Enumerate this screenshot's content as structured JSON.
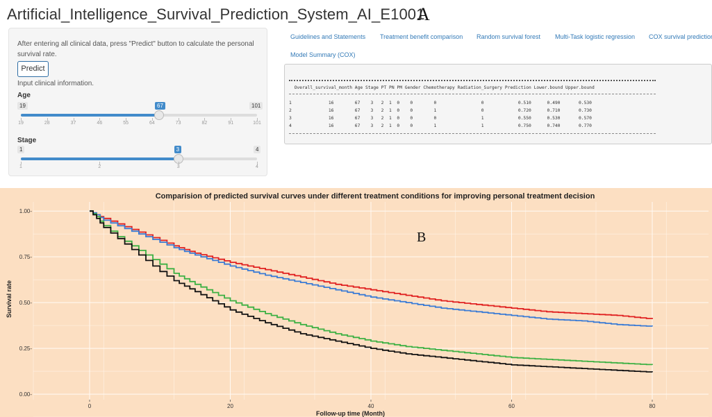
{
  "app": {
    "title": "Artificial_Intelligence_Survival_Prediction_System_AI_E1001",
    "panel_a": "A",
    "panel_b": "B"
  },
  "sidebar": {
    "help_text": "After entering all clinical data, press \"Predict\" button to calculate the personal survival rate.",
    "predict_label": "Predict",
    "input_label": "Input clinical information.",
    "age": {
      "label": "Age",
      "min": 19,
      "max": 101,
      "value": 67,
      "ticks": [
        "19",
        "28",
        "37",
        "46",
        "55",
        "64",
        "73",
        "82",
        "91",
        "101"
      ]
    },
    "stage": {
      "label": "Stage",
      "min": 1,
      "max": 4,
      "value": 3,
      "ticks": [
        "1",
        "2",
        "3",
        "4"
      ]
    }
  },
  "tabs": [
    "Guidelines and Statements",
    "Treatment benefit comparison",
    "Random survival forest",
    "Multi-Task logistic regression",
    "COX survival prediction",
    "Model Summary (COX)"
  ],
  "output": {
    "header": "  Overall_survival_month Age Stage PT PN PM Gender Chemotherapy Radiation_Surgery Prediction Lower.bound Upper.bound",
    "rows": [
      "1              16        67    3   2  1  0    0        0                 0             0.510      0.490       0.530",
      "2              16        67    3   2  1  0    0        1                 0             0.720      0.710       0.730",
      "3              16        67    3   2  1  0    0        0                 1             0.550      0.530       0.570",
      "4              16        67    3   2  1  0    0        1                 1             0.750      0.740       0.770"
    ]
  },
  "chart_data": {
    "type": "line",
    "title": "Comparision of predicted survival curves under different treatment conditions for improving personal treatment decision",
    "xlabel": "Follow-up time (Month)",
    "ylabel": "Survival rate",
    "xlim": [
      -8,
      88
    ],
    "ylim": [
      -0.03,
      1.05
    ],
    "xticks": [
      0,
      20,
      40,
      60,
      80
    ],
    "yticks": [
      0.0,
      0.25,
      0.5,
      0.75,
      1.0
    ],
    "ytick_labels": [
      "0.00-",
      "0.25-",
      "0.50-",
      "0.75-",
      "1.00-"
    ],
    "grid": true,
    "background": "#fcdfc2",
    "series": [
      {
        "color": "#e02020",
        "x": [
          0,
          1,
          2,
          4,
          6,
          8,
          10,
          12,
          15,
          20,
          25,
          30,
          35,
          40,
          45,
          50,
          55,
          60,
          65,
          70,
          75,
          80
        ],
        "y": [
          1.0,
          0.98,
          0.96,
          0.93,
          0.9,
          0.87,
          0.84,
          0.81,
          0.77,
          0.72,
          0.68,
          0.64,
          0.6,
          0.57,
          0.54,
          0.51,
          0.49,
          0.47,
          0.45,
          0.44,
          0.43,
          0.41
        ]
      },
      {
        "color": "#3a7bd5",
        "x": [
          0,
          1,
          2,
          4,
          6,
          8,
          10,
          12,
          15,
          20,
          25,
          30,
          35,
          40,
          45,
          50,
          55,
          60,
          65,
          70,
          75,
          80
        ],
        "y": [
          1.0,
          0.98,
          0.95,
          0.92,
          0.89,
          0.86,
          0.83,
          0.8,
          0.76,
          0.7,
          0.65,
          0.61,
          0.57,
          0.53,
          0.5,
          0.47,
          0.45,
          0.43,
          0.41,
          0.4,
          0.38,
          0.37
        ]
      },
      {
        "color": "#3cb043",
        "x": [
          0,
          1,
          2,
          4,
          6,
          8,
          10,
          12,
          15,
          20,
          25,
          30,
          35,
          40,
          45,
          50,
          55,
          60,
          65,
          70,
          75,
          80
        ],
        "y": [
          1.0,
          0.97,
          0.92,
          0.86,
          0.81,
          0.76,
          0.71,
          0.66,
          0.6,
          0.51,
          0.44,
          0.38,
          0.33,
          0.29,
          0.26,
          0.24,
          0.22,
          0.2,
          0.19,
          0.18,
          0.17,
          0.16
        ]
      },
      {
        "color": "#111111",
        "x": [
          0,
          1,
          2,
          4,
          6,
          8,
          10,
          12,
          15,
          20,
          25,
          30,
          35,
          40,
          45,
          50,
          55,
          60,
          65,
          70,
          75,
          80
        ],
        "y": [
          1.0,
          0.96,
          0.91,
          0.85,
          0.79,
          0.73,
          0.67,
          0.62,
          0.56,
          0.46,
          0.39,
          0.33,
          0.29,
          0.25,
          0.22,
          0.2,
          0.18,
          0.16,
          0.15,
          0.14,
          0.13,
          0.12
        ]
      }
    ]
  }
}
